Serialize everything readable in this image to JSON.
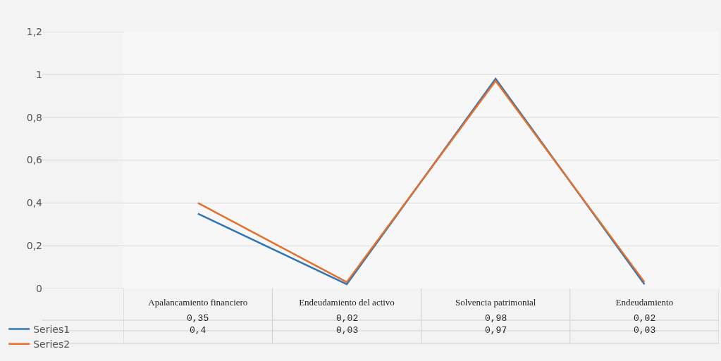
{
  "chart_data": {
    "type": "line",
    "categories": [
      "Apalancamiento financiero",
      "Endeudamiento del activo",
      "Solvencia patrimonial",
      "Endeudamiento"
    ],
    "series": [
      {
        "name": "Series1",
        "color": "#2f75b5",
        "values": [
          0.35,
          0.02,
          0.98,
          0.02
        ],
        "value_labels": [
          "0,35",
          "0,02",
          "0,98",
          "0,02"
        ]
      },
      {
        "name": "Series2",
        "color": "#e2702f",
        "values": [
          0.4,
          0.03,
          0.97,
          0.03
        ],
        "value_labels": [
          "0,4",
          "0,03",
          "0,97",
          "0,03"
        ]
      }
    ],
    "ylim": [
      0,
      1.2
    ],
    "yticks": [
      0,
      {
        "value": 0.2,
        "label": "0,2"
      },
      {
        "value": 0.4,
        "label": "0,4"
      },
      {
        "value": 0.6,
        "label": "0,6"
      },
      {
        "value": 0.8,
        "label": "0,8"
      },
      1,
      {
        "value": 1.2,
        "label": "1,2"
      }
    ],
    "grid": "y",
    "legend": "bottom left",
    "marker": "none",
    "line_style": "solid"
  }
}
